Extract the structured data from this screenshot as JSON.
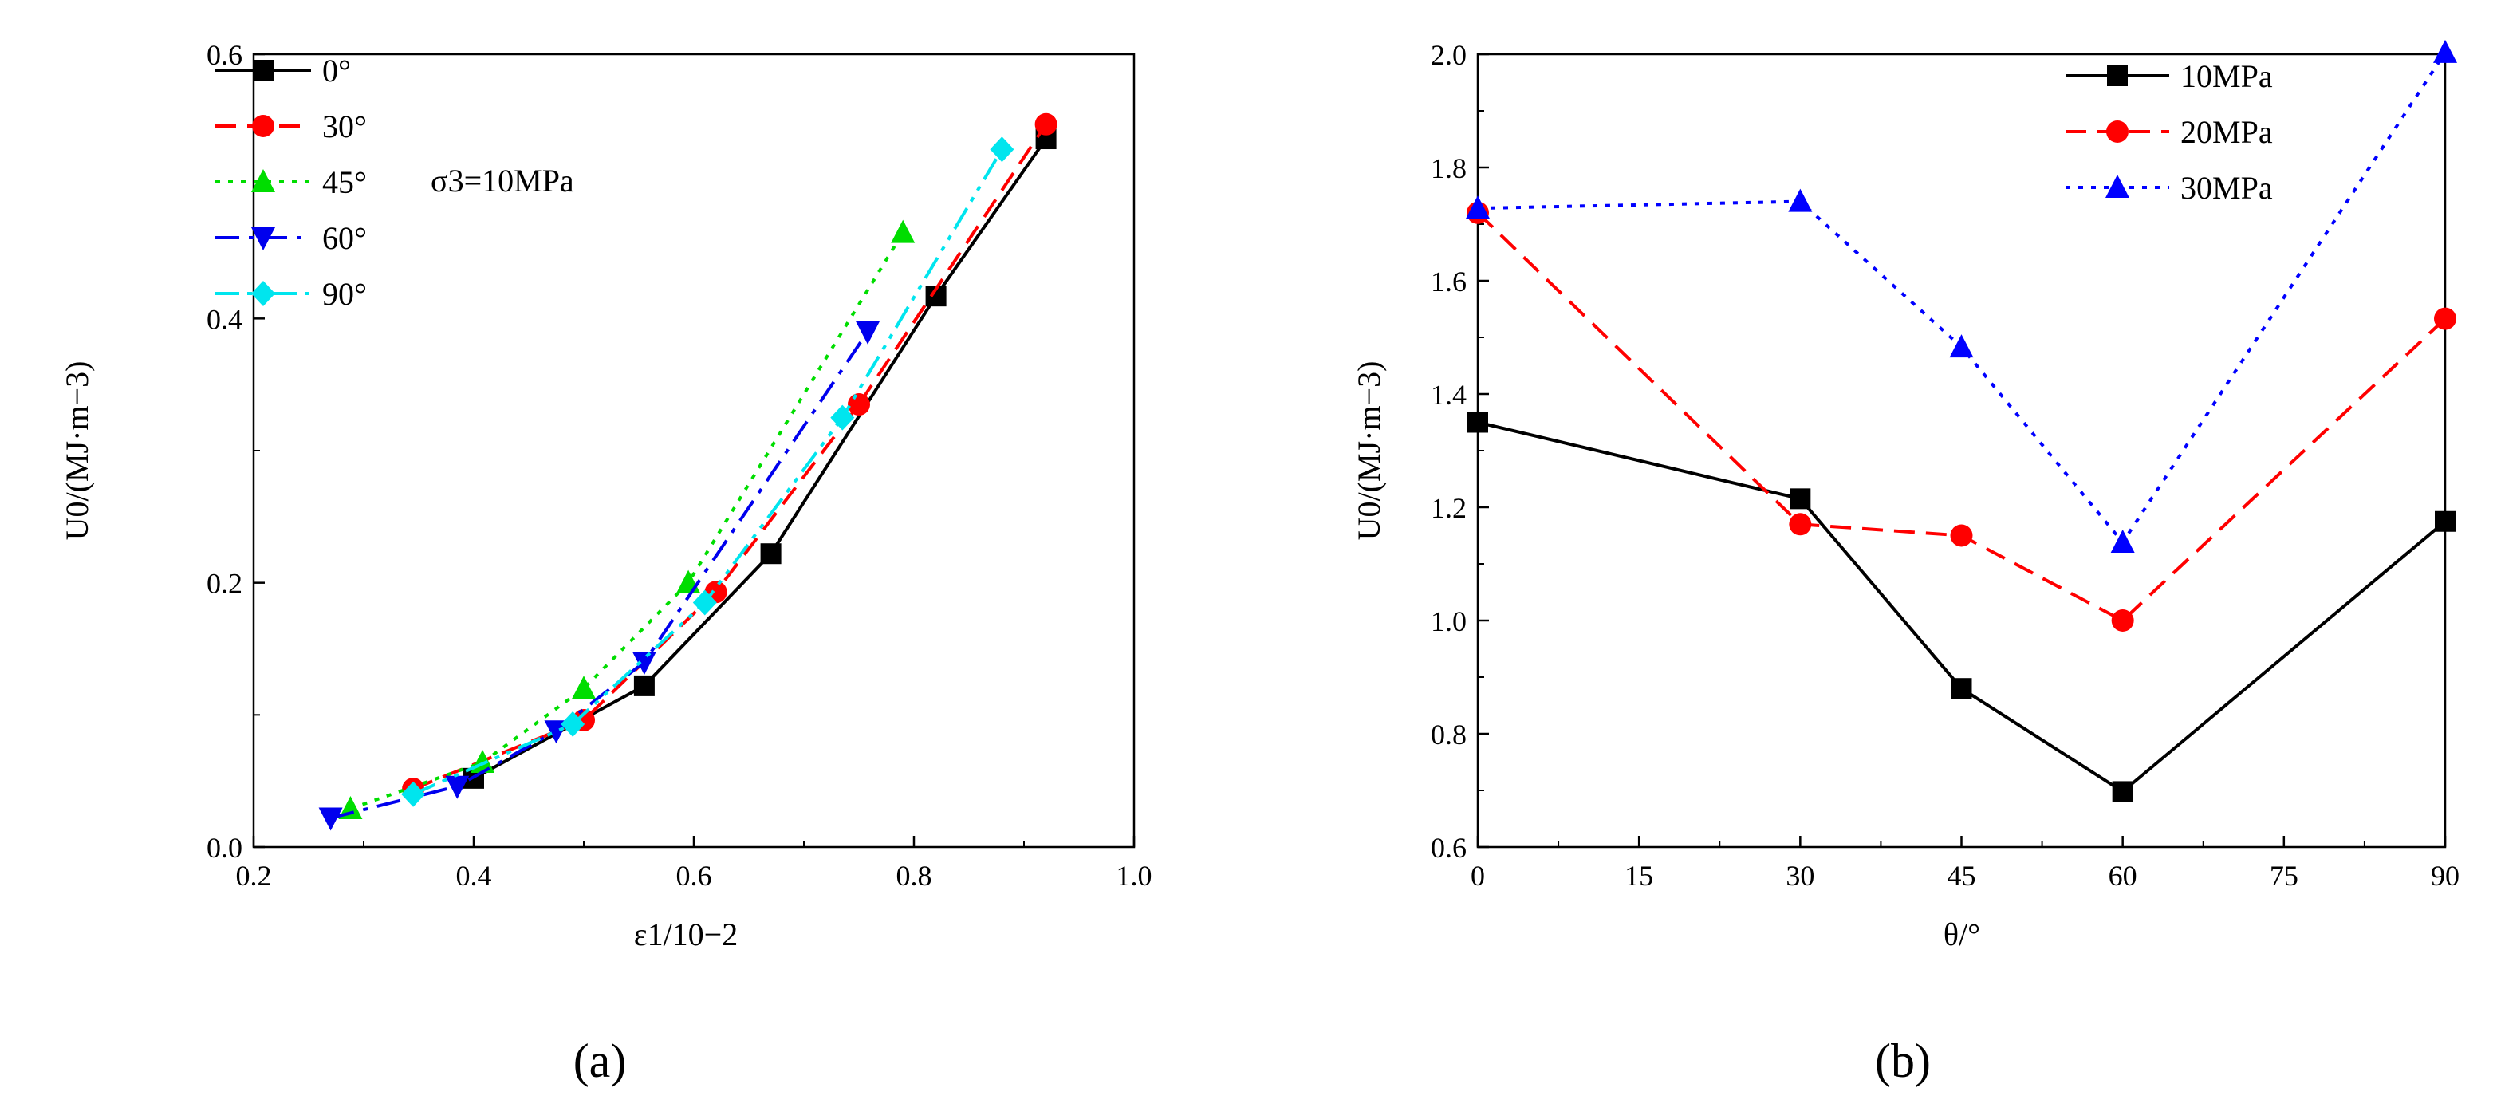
{
  "chart_data": [
    {
      "id": "a",
      "type": "line",
      "caption": "(a)",
      "xlabel": "ε1/10−2",
      "ylabel": "U0/(MJ·m−3)",
      "xlim": [
        0.2,
        1.0
      ],
      "ylim": [
        0.0,
        0.6
      ],
      "xticks": [
        0.2,
        0.4,
        0.6,
        0.8,
        1.0
      ],
      "xtick_labels": [
        "0.2",
        "0.4",
        "0.6",
        "0.8",
        "1.0"
      ],
      "yticks": [
        0.0,
        0.2,
        0.4,
        0.6
      ],
      "ytick_labels": [
        "0.0",
        "0.2",
        "0.4",
        "0.6"
      ],
      "annotation": "σ3=10MPa",
      "legend_position": "top-left",
      "grid": false,
      "series": [
        {
          "name": "0°",
          "color": "#000000",
          "marker": "square",
          "dash": "solid",
          "x": [
            0.4,
            0.555,
            0.67,
            0.82,
            0.92
          ],
          "y": [
            0.052,
            0.122,
            0.222,
            0.417,
            0.536
          ]
        },
        {
          "name": "30°",
          "color": "#ff0000",
          "marker": "circle",
          "dash": "dashed",
          "x": [
            0.345,
            0.5,
            0.62,
            0.75,
            0.92
          ],
          "y": [
            0.044,
            0.096,
            0.193,
            0.335,
            0.547
          ]
        },
        {
          "name": "45°",
          "color": "#00dd00",
          "marker": "triangle-up",
          "dash": "dotted",
          "x": [
            0.288,
            0.408,
            0.5,
            0.595,
            0.79
          ],
          "y": [
            0.029,
            0.064,
            0.12,
            0.2,
            0.465
          ]
        },
        {
          "name": "60°",
          "color": "#0000ee",
          "marker": "triangle-down",
          "dash": "dashdot",
          "x": [
            0.27,
            0.385,
            0.475,
            0.555,
            0.758
          ],
          "y": [
            0.022,
            0.046,
            0.088,
            0.14,
            0.39
          ]
        },
        {
          "name": "90°",
          "color": "#00e5ee",
          "marker": "diamond",
          "dash": "dashdotdot",
          "x": [
            0.345,
            0.49,
            0.61,
            0.735,
            0.88
          ],
          "y": [
            0.04,
            0.093,
            0.185,
            0.325,
            0.528
          ]
        }
      ]
    },
    {
      "id": "b",
      "type": "line",
      "caption": "(b)",
      "xlabel": "θ/°",
      "ylabel": "U0/(MJ·m−3)",
      "xlim": [
        0,
        90
      ],
      "ylim": [
        0.6,
        2.0
      ],
      "xticks": [
        0,
        15,
        30,
        45,
        60,
        75,
        90
      ],
      "xtick_labels": [
        "0",
        "15",
        "30",
        "45",
        "60",
        "75",
        "90"
      ],
      "yticks": [
        0.6,
        0.8,
        1.0,
        1.2,
        1.4,
        1.6,
        1.8,
        2.0
      ],
      "ytick_labels": [
        "0.6",
        "0.8",
        "1.0",
        "1.2",
        "1.4",
        "1.6",
        "1.8",
        "2.0"
      ],
      "legend_position": "top-right",
      "grid": false,
      "series": [
        {
          "name": "10MPa",
          "color": "#000000",
          "marker": "square",
          "dash": "solid",
          "x": [
            0,
            30,
            45,
            60,
            90
          ],
          "y": [
            1.35,
            1.215,
            0.88,
            0.698,
            1.175
          ]
        },
        {
          "name": "20MPa",
          "color": "#ff0000",
          "marker": "circle",
          "dash": "dashed",
          "x": [
            0,
            30,
            45,
            60,
            90
          ],
          "y": [
            1.72,
            1.17,
            1.15,
            1.0,
            1.533
          ]
        },
        {
          "name": "30MPa",
          "color": "#0000ff",
          "marker": "triangle-up",
          "dash": "dotted",
          "x": [
            0,
            30,
            45,
            60,
            90
          ],
          "y": [
            1.728,
            1.74,
            1.483,
            1.138,
            2.003
          ]
        }
      ]
    }
  ]
}
